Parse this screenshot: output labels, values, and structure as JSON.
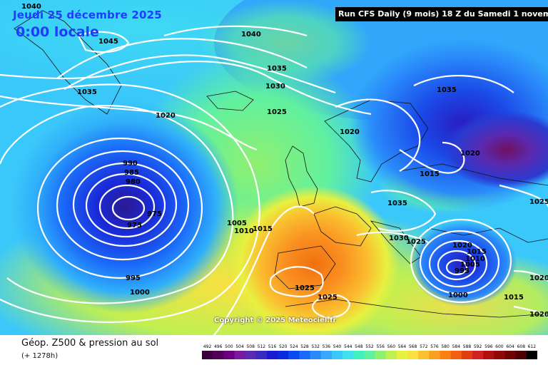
{
  "header": {
    "date": "Jeudi 25 décembre 2025",
    "time": "0:00 locale",
    "run": "Run CFS Daily (9 mois) 18 Z du Samedi 1 novembre 2025"
  },
  "footer": {
    "title": "Géop. Z500 & pression au sol",
    "subtitle": "(+ 1278h)",
    "copyright": "Copyright © 2025 Meteociel.fr"
  },
  "legend": {
    "values": [
      "492",
      "496",
      "500",
      "504",
      "508",
      "512",
      "516",
      "520",
      "524",
      "528",
      "532",
      "536",
      "540",
      "544",
      "548",
      "552",
      "556",
      "560",
      "564",
      "568",
      "572",
      "576",
      "580",
      "584",
      "588",
      "592",
      "596",
      "600",
      "604",
      "608",
      "612"
    ],
    "colors": [
      "#3a003a",
      "#52005a",
      "#6a0080",
      "#7a1aa0",
      "#5a2ab0",
      "#3a2ac0",
      "#1a1ad0",
      "#0a2ae0",
      "#0a4af0",
      "#1a6af8",
      "#2a8afa",
      "#3aa8fa",
      "#3ac8fa",
      "#40e0f0",
      "#40f0c0",
      "#60f0a0",
      "#90f070",
      "#c0f050",
      "#e8f040",
      "#fae040",
      "#fac030",
      "#faa020",
      "#fa8010",
      "#f06010",
      "#e04010",
      "#d02020",
      "#b01010",
      "#900808",
      "#700404",
      "#500000",
      "#000000"
    ]
  },
  "isobar_labels": [
    {
      "t": "1040"
    },
    {
      "t": "1045"
    },
    {
      "t": "1040"
    },
    {
      "t": "1035"
    },
    {
      "t": "1030"
    },
    {
      "t": "1035"
    },
    {
      "t": "1025"
    },
    {
      "t": "1020"
    },
    {
      "t": "1020"
    },
    {
      "t": "1035"
    },
    {
      "t": "1020"
    },
    {
      "t": "1015"
    },
    {
      "t": "1025"
    },
    {
      "t": "990"
    },
    {
      "t": "985"
    },
    {
      "t": "980"
    },
    {
      "t": "975"
    },
    {
      "t": "975"
    },
    {
      "t": "1005"
    },
    {
      "t": "1010"
    },
    {
      "t": "1015"
    },
    {
      "t": "995"
    },
    {
      "t": "1000"
    },
    {
      "t": "1035"
    },
    {
      "t": "1030"
    },
    {
      "t": "1025"
    },
    {
      "t": "1020"
    },
    {
      "t": "1015"
    },
    {
      "t": "1010"
    },
    {
      "t": "1005"
    },
    {
      "t": "995"
    },
    {
      "t": "1000"
    },
    {
      "t": "1015"
    },
    {
      "t": "1025"
    },
    {
      "t": "1025"
    },
    {
      "t": "1020"
    },
    {
      "t": "1020"
    }
  ]
}
